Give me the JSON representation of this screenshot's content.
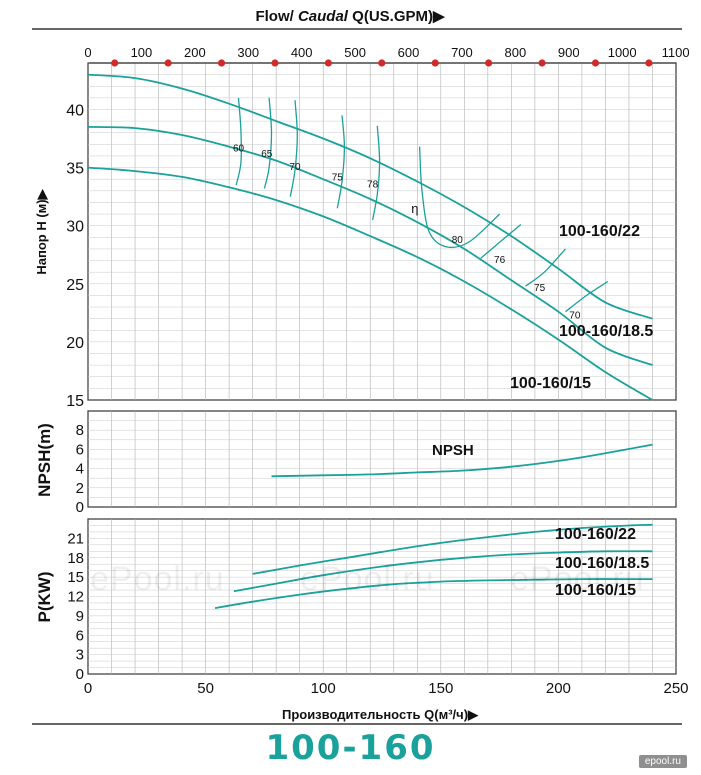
{
  "texts": {
    "watermark": "ePool.ru",
    "model": "100-160",
    "site": "epool.ru"
  },
  "chart_data": [
    {
      "type": "line",
      "panel": "head",
      "top_axis_title_prefix": "Flow/ ",
      "top_axis_title_italic": "Caudal",
      "top_axis_title_suffix": " Q(US.GPM)",
      "top_axis_title_arrow": "▶",
      "top_ticks": [
        0,
        100,
        200,
        300,
        400,
        500,
        600,
        700,
        800,
        900,
        1000,
        1100
      ],
      "ylabel": "Напор Н (м)",
      "ylabel_arrow": "▶",
      "ylim": [
        15,
        44
      ],
      "xlim": [
        0,
        250
      ],
      "yticks": [
        15,
        20,
        25,
        30,
        35,
        40
      ],
      "grid": true,
      "series": [
        {
          "name": "100-160/22",
          "x": [
            0,
            20,
            40,
            60,
            80,
            100,
            120,
            140,
            160,
            180,
            200,
            220,
            240
          ],
          "y": [
            43.0,
            42.7,
            41.8,
            40.5,
            39.0,
            37.5,
            35.8,
            33.8,
            31.6,
            29.1,
            26.3,
            23.4,
            22.0
          ]
        },
        {
          "name": "100-160/18.5",
          "x": [
            0,
            20,
            40,
            60,
            80,
            100,
            120,
            140,
            160,
            180,
            200,
            220,
            240
          ],
          "y": [
            38.5,
            38.4,
            37.8,
            36.8,
            35.6,
            34.0,
            32.3,
            30.3,
            28.0,
            25.3,
            22.6,
            19.5,
            18.0
          ]
        },
        {
          "name": "100-160/15",
          "x": [
            0,
            20,
            40,
            60,
            80,
            100,
            120,
            140,
            160,
            180,
            200,
            220,
            240
          ],
          "y": [
            35.0,
            34.7,
            34.2,
            33.3,
            32.2,
            30.8,
            29.1,
            27.3,
            25.2,
            22.8,
            20.2,
            17.4,
            15.0
          ]
        }
      ],
      "efficiency_label": "η",
      "efficiency_contours": [
        {
          "label": "60",
          "x": [
            64,
            65,
            65,
            63
          ],
          "y": [
            41,
            38.2,
            35.4,
            33.5
          ]
        },
        {
          "label": "65",
          "x": [
            77,
            78,
            77,
            75
          ],
          "y": [
            41,
            38,
            35,
            33.2
          ]
        },
        {
          "label": "70",
          "x": [
            88,
            89,
            88,
            86
          ],
          "y": [
            40.8,
            37.8,
            34.8,
            32.5
          ]
        },
        {
          "label": "75",
          "x": [
            108,
            109,
            108,
            106
          ],
          "y": [
            39.5,
            36.8,
            33.8,
            31.5
          ]
        },
        {
          "label": "78",
          "x": [
            123,
            124,
            123,
            121
          ],
          "y": [
            38.6,
            35.5,
            32.7,
            30.5
          ]
        },
        {
          "label": "80",
          "x": [
            141,
            142,
            145,
            152,
            162,
            175
          ],
          "y": [
            36.8,
            33,
            29.5,
            28.2,
            28.6,
            31
          ]
        },
        {
          "label": "76",
          "x": [
            167,
            174,
            184
          ],
          "y": [
            27.2,
            28.4,
            30.1
          ]
        },
        {
          "label": "75",
          "x": [
            186,
            194,
            203
          ],
          "y": [
            24.8,
            26,
            28
          ]
        },
        {
          "label": "70",
          "x": [
            203,
            212,
            221
          ],
          "y": [
            22.6,
            24,
            25.2
          ]
        }
      ],
      "contour_label_values": [
        {
          "text": "60",
          "x": 64,
          "y": 36.4
        },
        {
          "text": "65",
          "x": 76,
          "y": 35.9
        },
        {
          "text": "70",
          "x": 88,
          "y": 34.8
        },
        {
          "text": "75",
          "x": 106,
          "y": 33.9
        },
        {
          "text": "78",
          "x": 121,
          "y": 33.3
        },
        {
          "text": "η",
          "x": 139,
          "y": 31.1
        },
        {
          "text": "80",
          "x": 157,
          "y": 28.5
        },
        {
          "text": "76",
          "x": 175,
          "y": 26.8
        },
        {
          "text": "75",
          "x": 192,
          "y": 24.4
        },
        {
          "text": "70",
          "x": 207,
          "y": 22.0
        }
      ]
    },
    {
      "type": "line",
      "panel": "npsh",
      "ylabel": "NPSH(m)",
      "ylim": [
        0,
        10
      ],
      "yticks": [
        0,
        2,
        4,
        6,
        8
      ],
      "xlim": [
        0,
        250
      ],
      "grid": true,
      "series": [
        {
          "name": "NPSH",
          "x": [
            78,
            100,
            120,
            140,
            160,
            180,
            200,
            220,
            240
          ],
          "y": [
            3.2,
            3.3,
            3.4,
            3.6,
            3.8,
            4.2,
            4.8,
            5.6,
            6.5
          ]
        }
      ]
    },
    {
      "type": "line",
      "panel": "power",
      "ylabel": "P(KW)",
      "ylim": [
        0,
        24
      ],
      "yticks": [
        0,
        3,
        6,
        9,
        12,
        15,
        18,
        21
      ],
      "xlim": [
        0,
        250
      ],
      "xticks": [
        0,
        50,
        100,
        150,
        200,
        250
      ],
      "xlabel": "Производительность Q(м³/ч)",
      "xlabel_arrow": "▶",
      "grid": true,
      "series": [
        {
          "name": "100-160/22",
          "x": [
            70,
            90,
            110,
            130,
            150,
            170,
            190,
            210,
            230,
            240
          ],
          "y": [
            15.5,
            16.8,
            18.0,
            19.2,
            20.3,
            21.2,
            22.0,
            22.6,
            23.0,
            23.1
          ]
        },
        {
          "name": "100-160/18.5",
          "x": [
            62,
            80,
            100,
            120,
            140,
            160,
            180,
            200,
            220,
            240
          ],
          "y": [
            12.8,
            14.0,
            15.3,
            16.4,
            17.3,
            18.0,
            18.5,
            18.8,
            19.0,
            19.0
          ]
        },
        {
          "name": "100-160/15",
          "x": [
            54,
            70,
            90,
            110,
            130,
            150,
            170,
            190,
            210,
            230,
            240
          ],
          "y": [
            10.2,
            11.2,
            12.3,
            13.2,
            13.9,
            14.3,
            14.5,
            14.6,
            14.7,
            14.7,
            14.7
          ]
        }
      ]
    }
  ]
}
